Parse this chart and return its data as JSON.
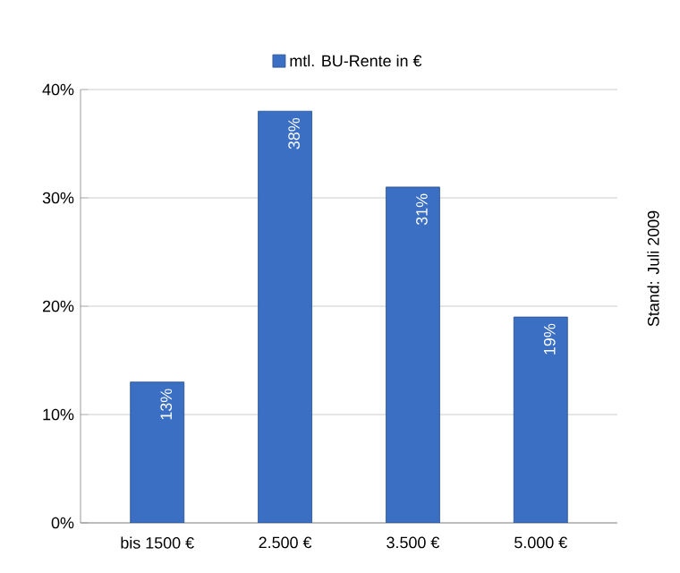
{
  "chart_data": {
    "type": "bar",
    "categories": [
      "bis 1500 €",
      "2.500 €",
      "3.500 €",
      "5.000 €"
    ],
    "series": [
      {
        "name": "mtl. BU-Rente in €",
        "color": "#3a6fc4",
        "values": [
          13,
          38,
          31,
          19
        ]
      }
    ],
    "value_labels": [
      "13%",
      "38%",
      "31%",
      "19%"
    ],
    "ylim": [
      0,
      40
    ],
    "yticks": [
      {
        "value": 0,
        "label": "0%"
      },
      {
        "value": 10,
        "label": "10%"
      },
      {
        "value": 20,
        "label": "20%"
      },
      {
        "value": 30,
        "label": "30%"
      },
      {
        "value": 40,
        "label": "40%"
      }
    ],
    "grid": "y",
    "legend": "top",
    "annotations": [
      "Stand: Juli 2009"
    ]
  }
}
